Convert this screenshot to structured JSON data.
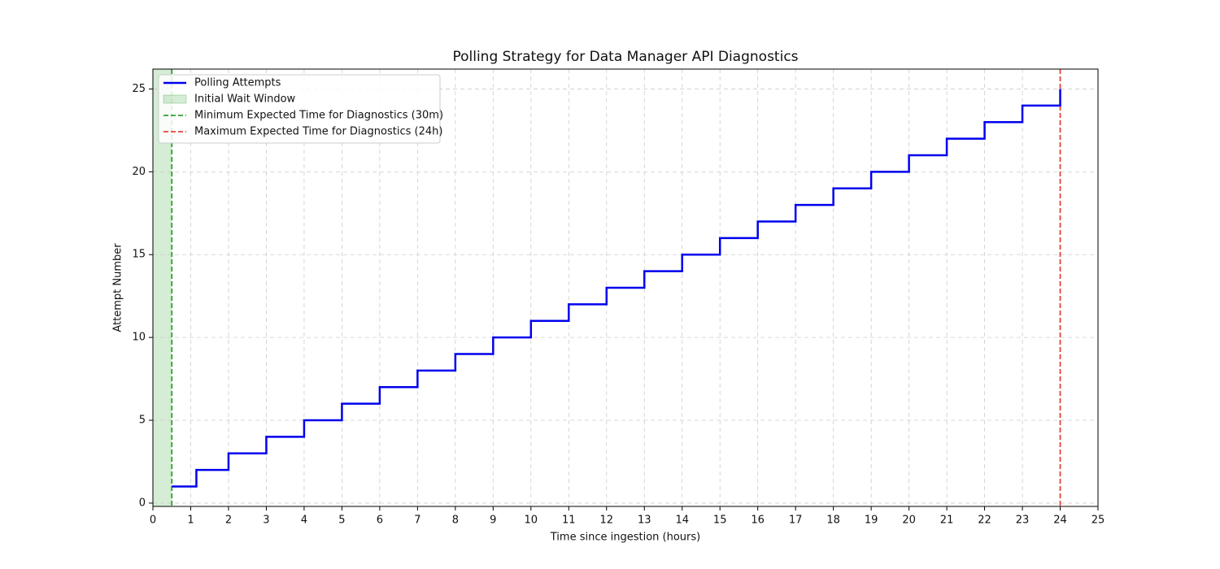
{
  "chart_data": {
    "type": "step",
    "title": "Polling Strategy for Data Manager API Diagnostics",
    "xlabel": "Time since ingestion (hours)",
    "ylabel": "Attempt Number",
    "x": [
      0.5,
      1.15,
      2,
      3,
      4,
      5,
      6,
      7,
      8,
      9,
      10,
      11,
      12,
      13,
      14,
      15,
      16,
      17,
      18,
      19,
      20,
      21,
      22,
      23,
      24
    ],
    "series": [
      {
        "name": "Polling Attempts",
        "color": "#0000ee",
        "values": [
          1,
          2,
          3,
          4,
          5,
          6,
          7,
          8,
          9,
          10,
          11,
          12,
          13,
          14,
          15,
          16,
          17,
          18,
          19,
          20,
          21,
          22,
          23,
          24,
          25
        ]
      }
    ],
    "spans": [
      {
        "name": "Initial Wait Window",
        "color": "#2ca02c",
        "range": [
          0,
          0.5
        ]
      }
    ],
    "vlines": [
      {
        "name": "Minimum Expected Time for Diagnostics (30m)",
        "color": "#2ca02c",
        "x": 0.5
      },
      {
        "name": "Maximum Expected Time for Diagnostics (24h)",
        "color": "#e8403b",
        "x": 24
      }
    ],
    "xlim": [
      0,
      25
    ],
    "ylim": [
      -0.2,
      26.2
    ],
    "xticks": [
      0,
      1,
      2,
      3,
      4,
      5,
      6,
      7,
      8,
      9,
      10,
      11,
      12,
      13,
      14,
      15,
      16,
      17,
      18,
      19,
      20,
      21,
      22,
      23,
      24,
      25
    ],
    "yticks": [
      0,
      5,
      10,
      15,
      20,
      25
    ],
    "grid": true,
    "legend": "upper-left"
  }
}
